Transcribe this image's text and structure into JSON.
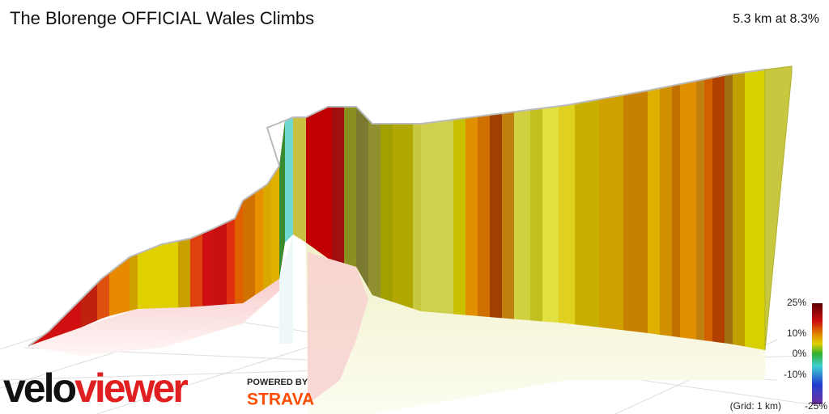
{
  "header": {
    "title": "The Blorenge OFFICIAL Wales Climbs",
    "summary": "5.3 km at 8.3%"
  },
  "scale": {
    "labels": [
      "25%",
      "10%",
      "0%",
      "-10%",
      "-25%"
    ],
    "grid_note": "(Grid: 1 km)"
  },
  "branding": {
    "logo": "veloviewer",
    "powered_by": "POWERED BY",
    "partner": "STRAVA"
  }
}
